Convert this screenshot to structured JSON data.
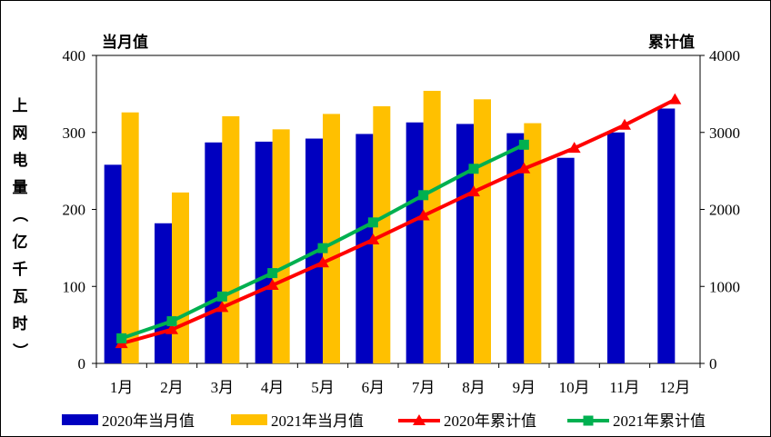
{
  "chart_data": {
    "type": "bar+line",
    "categories": [
      "1月",
      "2月",
      "3月",
      "4月",
      "5月",
      "6月",
      "7月",
      "8月",
      "9月",
      "10月",
      "11月",
      "12月"
    ],
    "left_axis": {
      "title": "当月值",
      "ylabel": "上网电量（亿千瓦时）",
      "ylim": [
        0,
        400
      ],
      "ticks": [
        0,
        100,
        200,
        300,
        400
      ]
    },
    "right_axis": {
      "title": "累计值",
      "ylim": [
        0,
        4000
      ],
      "ticks": [
        0,
        1000,
        2000,
        3000,
        4000
      ]
    },
    "bar_series": [
      {
        "name": "2020年当月值",
        "color": "#0000C0",
        "axis": "left",
        "values": [
          258,
          182,
          287,
          288,
          292,
          298,
          313,
          311,
          299,
          267,
          300,
          331
        ]
      },
      {
        "name": "2021年当月值",
        "color": "#FFC000",
        "axis": "left",
        "values": [
          326,
          222,
          321,
          304,
          324,
          334,
          354,
          343,
          312,
          null,
          null,
          null
        ]
      }
    ],
    "line_series": [
      {
        "name": "2020年累计值",
        "color": "#FF0000",
        "marker": "triangle",
        "axis": "right",
        "values": [
          258,
          440,
          727,
          1015,
          1307,
          1605,
          1918,
          2229,
          2528,
          2795,
          3095,
          3426
        ]
      },
      {
        "name": "2021年累计值",
        "color": "#00B050",
        "marker": "square",
        "axis": "right",
        "values": [
          326,
          548,
          869,
          1173,
          1497,
          1831,
          2185,
          2528,
          2840,
          null,
          null,
          null
        ]
      }
    ]
  }
}
